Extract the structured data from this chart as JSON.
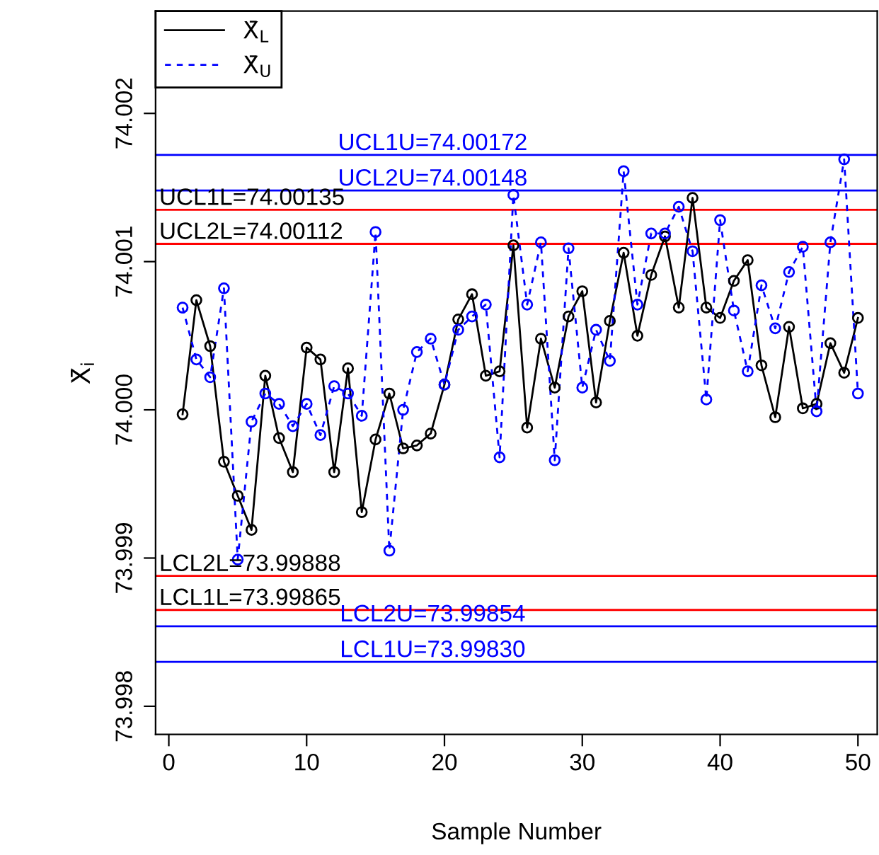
{
  "chart_data": {
    "type": "line",
    "xlabel": "Sample Number",
    "ylabel": "X̄$_{i}$",
    "x": [
      1,
      2,
      3,
      4,
      5,
      6,
      7,
      8,
      9,
      10,
      11,
      12,
      13,
      14,
      15,
      16,
      17,
      18,
      19,
      20,
      21,
      22,
      23,
      24,
      25,
      26,
      27,
      28,
      29,
      30,
      31,
      32,
      33,
      34,
      35,
      36,
      37,
      38,
      39,
      40,
      41,
      42,
      43,
      44,
      45,
      46,
      47,
      48,
      49,
      50
    ],
    "series": [
      {
        "name": "X̄$_{L}$",
        "color": "#000000",
        "line_style": "solid",
        "values": [
          73.99997,
          74.00074,
          74.00043,
          73.99965,
          73.99942,
          73.99919,
          74.00023,
          73.99981,
          73.99958,
          74.00042,
          74.00034,
          73.99958,
          74.00028,
          73.99931,
          73.9998,
          74.00011,
          73.99974,
          73.99976,
          73.99984,
          74.00017,
          74.00061,
          74.00078,
          74.00023,
          74.00026,
          74.00111,
          73.99988,
          74.00048,
          74.00015,
          74.00063,
          74.0008,
          74.00005,
          74.0006,
          74.00106,
          74.0005,
          74.00091,
          74.00117,
          74.00069,
          74.00143,
          74.00069,
          74.00062,
          74.00087,
          74.00101,
          74.0003,
          73.99995,
          74.00056,
          74.00001,
          74.00004,
          74.00045,
          74.00025,
          74.00062
        ]
      },
      {
        "name": "X̄$_{U}$",
        "color": "#0000ff",
        "line_style": "dashed",
        "values": [
          74.00069,
          74.00034,
          74.00022,
          74.00082,
          73.99899,
          73.99992,
          74.00011,
          74.00004,
          73.99989,
          74.00004,
          73.99983,
          74.00016,
          74.00011,
          73.99996,
          74.0012,
          73.99905,
          74.0,
          74.00039,
          74.00048,
          74.00017,
          74.00054,
          74.00063,
          74.00071,
          73.99968,
          74.00145,
          74.00071,
          74.00113,
          73.99966,
          74.00109,
          74.00015,
          74.00054,
          74.00033,
          74.00161,
          74.00071,
          74.00119,
          74.00119,
          74.00137,
          74.00107,
          74.00007,
          74.00128,
          74.00067,
          74.00026,
          74.00084,
          74.00055,
          74.00093,
          74.0011,
          73.99999,
          74.00113,
          74.00169,
          74.00011
        ]
      }
    ],
    "marker": "circle",
    "legend": "top left",
    "grid": false,
    "xlim": [
      -0.96,
      51.4
    ],
    "xticks": [
      0,
      10,
      20,
      30,
      40,
      50
    ],
    "ylim": [
      73.99781,
      74.00269
    ],
    "yticks": [
      73.998,
      73.999,
      {
        "value": 74.0,
        "label": "74.000"
      },
      74.001,
      74.002
    ],
    "ref_lines": [
      {
        "axis": "y",
        "value": 74.00172,
        "label": "UCL1U=74.00172",
        "color": "#0000ff"
      },
      {
        "axis": "y",
        "value": 74.00148,
        "label": "UCL2U=74.00148",
        "color": "#0000ff"
      },
      {
        "axis": "y",
        "value": 74.00135,
        "label": "UCL1L=74.00135",
        "color": "#ff0000"
      },
      {
        "axis": "y",
        "value": 74.00112,
        "label": "UCL2L=74.00112",
        "color": "#ff0000"
      },
      {
        "axis": "y",
        "value": 73.99888,
        "label": "LCL2L=73.99888",
        "color": "#ff0000"
      },
      {
        "axis": "y",
        "value": 73.99865,
        "label": "LCL1L=73.99865",
        "color": "#ff0000"
      },
      {
        "axis": "y",
        "value": 73.99854,
        "label": "LCL2U=73.99854",
        "color": "#0000ff"
      },
      {
        "axis": "y",
        "value": 73.9983,
        "label": "LCL1U=73.99830",
        "color": "#0000ff"
      }
    ]
  }
}
